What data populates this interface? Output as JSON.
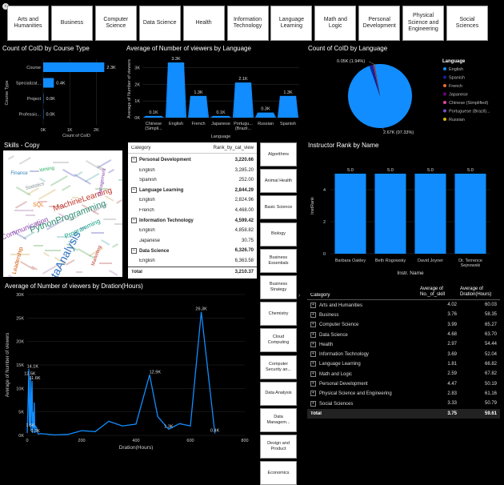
{
  "category_tiles": [
    "Arts and Humanities",
    "Business",
    "Computer Science",
    "Data Science",
    "Health",
    "Information Technology",
    "Language Learning",
    "Math and Logic",
    "Personal Development",
    "Physical Science and Engineering",
    "Social Sciences"
  ],
  "course_type_chart": {
    "title": "Count of CoID by Course Type",
    "ylabel": "Course Type",
    "xlabel": "Count of CoID",
    "categories": [
      "Course",
      "Specializat...",
      "Project",
      "Professio..."
    ],
    "values": [
      2.3,
      0.4,
      0.0,
      0.0
    ],
    "labels": [
      "2.3K",
      "0.4K",
      "0.0K",
      "0.0K"
    ],
    "xticks": [
      "0K",
      "1K",
      "2K"
    ],
    "xlim": [
      0,
      2.5
    ],
    "color": "#118dff"
  },
  "language_chart": {
    "title": "Average of Number of viewers by Language",
    "ylabel": "Average of Number of viewers",
    "xlabel": "Language",
    "categories": [
      "Chinese (Simpli...",
      "English",
      "French",
      "Japanese",
      "Portugu... (Brazil...",
      "Russian",
      "Spanish"
    ],
    "values": [
      0.1,
      3.3,
      1.3,
      0.1,
      2.1,
      0.3,
      1.3
    ],
    "labels": [
      "0.1K",
      "3.3K",
      "1.3K",
      "0.1K",
      "2.1K",
      "0.3K",
      "1.3K"
    ],
    "yticks": [
      "0K",
      "1K",
      "2K",
      "3K"
    ],
    "ylim": [
      0,
      3.5
    ],
    "color": "#118dff"
  },
  "pie_chart": {
    "title": "Count of CoID by Language",
    "legend_title": "Language",
    "legend": [
      {
        "name": "English",
        "color": "#118dff"
      },
      {
        "name": "Spanish",
        "color": "#12239e"
      },
      {
        "name": "French",
        "color": "#e66c37"
      },
      {
        "name": "Japanese",
        "color": "#6b007b"
      },
      {
        "name": "Chinese (Simplified)",
        "color": "#e044a7"
      },
      {
        "name": "Portuguese (Brazil)...",
        "color": "#744ec2"
      },
      {
        "name": "Russian",
        "color": "#d9b300"
      }
    ],
    "slices": [
      {
        "name": "English",
        "value": 97.33,
        "color": "#118dff"
      },
      {
        "name": "Spanish",
        "value": 1.94,
        "color": "#12239e"
      },
      {
        "name": "French",
        "value": 0.35,
        "color": "#e66c37"
      },
      {
        "name": "Japanese",
        "value": 0.12,
        "color": "#6b007b"
      },
      {
        "name": "Chinese (Simplified)",
        "value": 0.1,
        "color": "#e044a7"
      },
      {
        "name": "Portuguese (Brazil)",
        "value": 0.1,
        "color": "#744ec2"
      },
      {
        "name": "Russian",
        "value": 0.06,
        "color": "#d9b300"
      }
    ],
    "label_small": "0.05K (1.94%)",
    "label_large": "2.67K (97.33%)"
  },
  "wordcloud": {
    "title": "Skills - Copy",
    "words": [
      {
        "t": "DataAnalysis",
        "c": "#2c6fbf"
      },
      {
        "t": "PythonProgramming",
        "c": "#2b8a6f"
      },
      {
        "t": "MachineLearning",
        "c": "#c0392b"
      },
      {
        "t": "Communication",
        "c": "#8e44ad"
      },
      {
        "t": "Leadership",
        "c": "#d35400"
      },
      {
        "t": "Programming",
        "c": "#16a085"
      },
      {
        "t": "Statistics",
        "c": "#7f8c8d"
      },
      {
        "t": "Marketing",
        "c": "#c0392b"
      },
      {
        "t": "Finance",
        "c": "#2980b9"
      },
      {
        "t": "Writing",
        "c": "#27ae60"
      },
      {
        "t": "Management",
        "c": "#8e44ad"
      },
      {
        "t": "SQL",
        "c": "#e67e22"
      }
    ]
  },
  "matrix": {
    "headers": [
      "Category",
      "Rank_by_cat_view"
    ],
    "rows": [
      {
        "type": "group",
        "label": "Personal Development",
        "value": "3,220.66"
      },
      {
        "type": "child",
        "label": "English",
        "value": "3,285.20"
      },
      {
        "type": "child",
        "label": "Spanish",
        "value": "252.00"
      },
      {
        "type": "group",
        "label": "Language Learning",
        "value": "2,844.29"
      },
      {
        "type": "child",
        "label": "English",
        "value": "2,824.96"
      },
      {
        "type": "child",
        "label": "French",
        "value": "4,468.00"
      },
      {
        "type": "group",
        "label": "Information Technology",
        "value": "4,599.42"
      },
      {
        "type": "child",
        "label": "English",
        "value": "4,858.82"
      },
      {
        "type": "child",
        "label": "Japanese",
        "value": "30.75"
      },
      {
        "type": "group",
        "label": "Data Science",
        "value": "6,326.70"
      },
      {
        "type": "child",
        "label": "English",
        "value": "6,363.58"
      }
    ],
    "total_label": "Total",
    "total_value": "3,210.37"
  },
  "subject_tiles": [
    "Algorithms",
    "Animal Health",
    "Basic Science",
    "Biology",
    "Business Essentials",
    "Business Strategy",
    "Chemistry",
    "Cloud Computing",
    "Computer Security an...",
    "Data Analysis",
    "Data Managem...",
    "Design and Product",
    "Economics"
  ],
  "instructor_chart": {
    "title": "Instructor Rank by Name",
    "ylabel": "InstRank",
    "xlabel": "Instr. Name",
    "categories": [
      "Barbara Oakley",
      "Beth Rogowsky",
      "David Joyner",
      "Dr. Terrence Sejnowski"
    ],
    "values": [
      5.0,
      5.0,
      5.0,
      5.0
    ],
    "labels": [
      "5.0",
      "5.0",
      "5.0",
      "5.0"
    ],
    "yticks": [
      "0",
      "2",
      "4"
    ],
    "ylim": [
      0,
      6.1
    ],
    "color": "#118dff"
  },
  "duration_chart": {
    "title": "Average of Number of viewers by Dration(Hours)",
    "ylabel": "Average of Number of viewers",
    "xlabel": "Dration(Hours)",
    "xlim": [
      0,
      800
    ],
    "ylim": [
      0,
      30
    ],
    "xticks": [
      "0",
      "200",
      "400",
      "600",
      "800"
    ],
    "yticks": [
      "0K",
      "5K",
      "10K",
      "15K",
      "20K",
      "25K",
      "30K"
    ],
    "x": [
      0,
      2,
      4,
      6,
      8,
      10,
      12,
      14,
      16,
      18,
      20,
      22,
      24,
      26,
      28,
      30,
      35,
      40,
      45,
      50,
      60,
      70,
      80,
      100,
      150,
      200,
      250,
      300,
      350,
      400,
      450,
      480,
      520,
      560,
      600,
      640,
      690
    ],
    "y": [
      0.5,
      4,
      9,
      14.1,
      2,
      3,
      12.5,
      1,
      8,
      11.6,
      0.5,
      5,
      1.5,
      7,
      0.5,
      2,
      1.6,
      0.3,
      0.3,
      0.4,
      0.3,
      0.3,
      0.2,
      0.1,
      0.2,
      1,
      0.8,
      3,
      2,
      2.4,
      12.9,
      4,
      1.3,
      2.5,
      2,
      26.3,
      0.4
    ],
    "labels": [
      {
        "x": 20,
        "y": 14.1,
        "t": "14.1K"
      },
      {
        "x": 10,
        "y": 12.5,
        "t": "12.5K"
      },
      {
        "x": 28,
        "y": 11.6,
        "t": "11.6K"
      },
      {
        "x": 12,
        "y": 1.5,
        "t": "1.5K"
      },
      {
        "x": 30,
        "y": 0.3,
        "t": "0.3K"
      },
      {
        "x": 470,
        "y": 12.9,
        "t": "12.9K"
      },
      {
        "x": 520,
        "y": 1.3,
        "t": "1.3K"
      },
      {
        "x": 640,
        "y": 26.3,
        "t": "26.3K"
      },
      {
        "x": 690,
        "y": 0.4,
        "t": "0.4K"
      }
    ],
    "color": "#118dff"
  },
  "category_table": {
    "headers": [
      "Category",
      "Average of No._of_skill",
      "Average of Dration(Hours)"
    ],
    "rows": [
      [
        "Arts and Humanities",
        "4.02",
        "60.03"
      ],
      [
        "Business",
        "3.76",
        "58.35"
      ],
      [
        "Computer Science",
        "3.99",
        "65.27"
      ],
      [
        "Data Science",
        "4.68",
        "63.70"
      ],
      [
        "Health",
        "2.97",
        "54.44"
      ],
      [
        "Information Technology",
        "3.69",
        "52.04"
      ],
      [
        "Language Learning",
        "1.81",
        "66.82"
      ],
      [
        "Math and Logic",
        "2.59",
        "67.82"
      ],
      [
        "Personal Development",
        "4.47",
        "50.19"
      ],
      [
        "Physical Science and Engineering",
        "2.83",
        "61.16"
      ],
      [
        "Social Sciences",
        "3.33",
        "50.79"
      ]
    ],
    "total": [
      "Total",
      "3.75",
      "59.61"
    ]
  }
}
